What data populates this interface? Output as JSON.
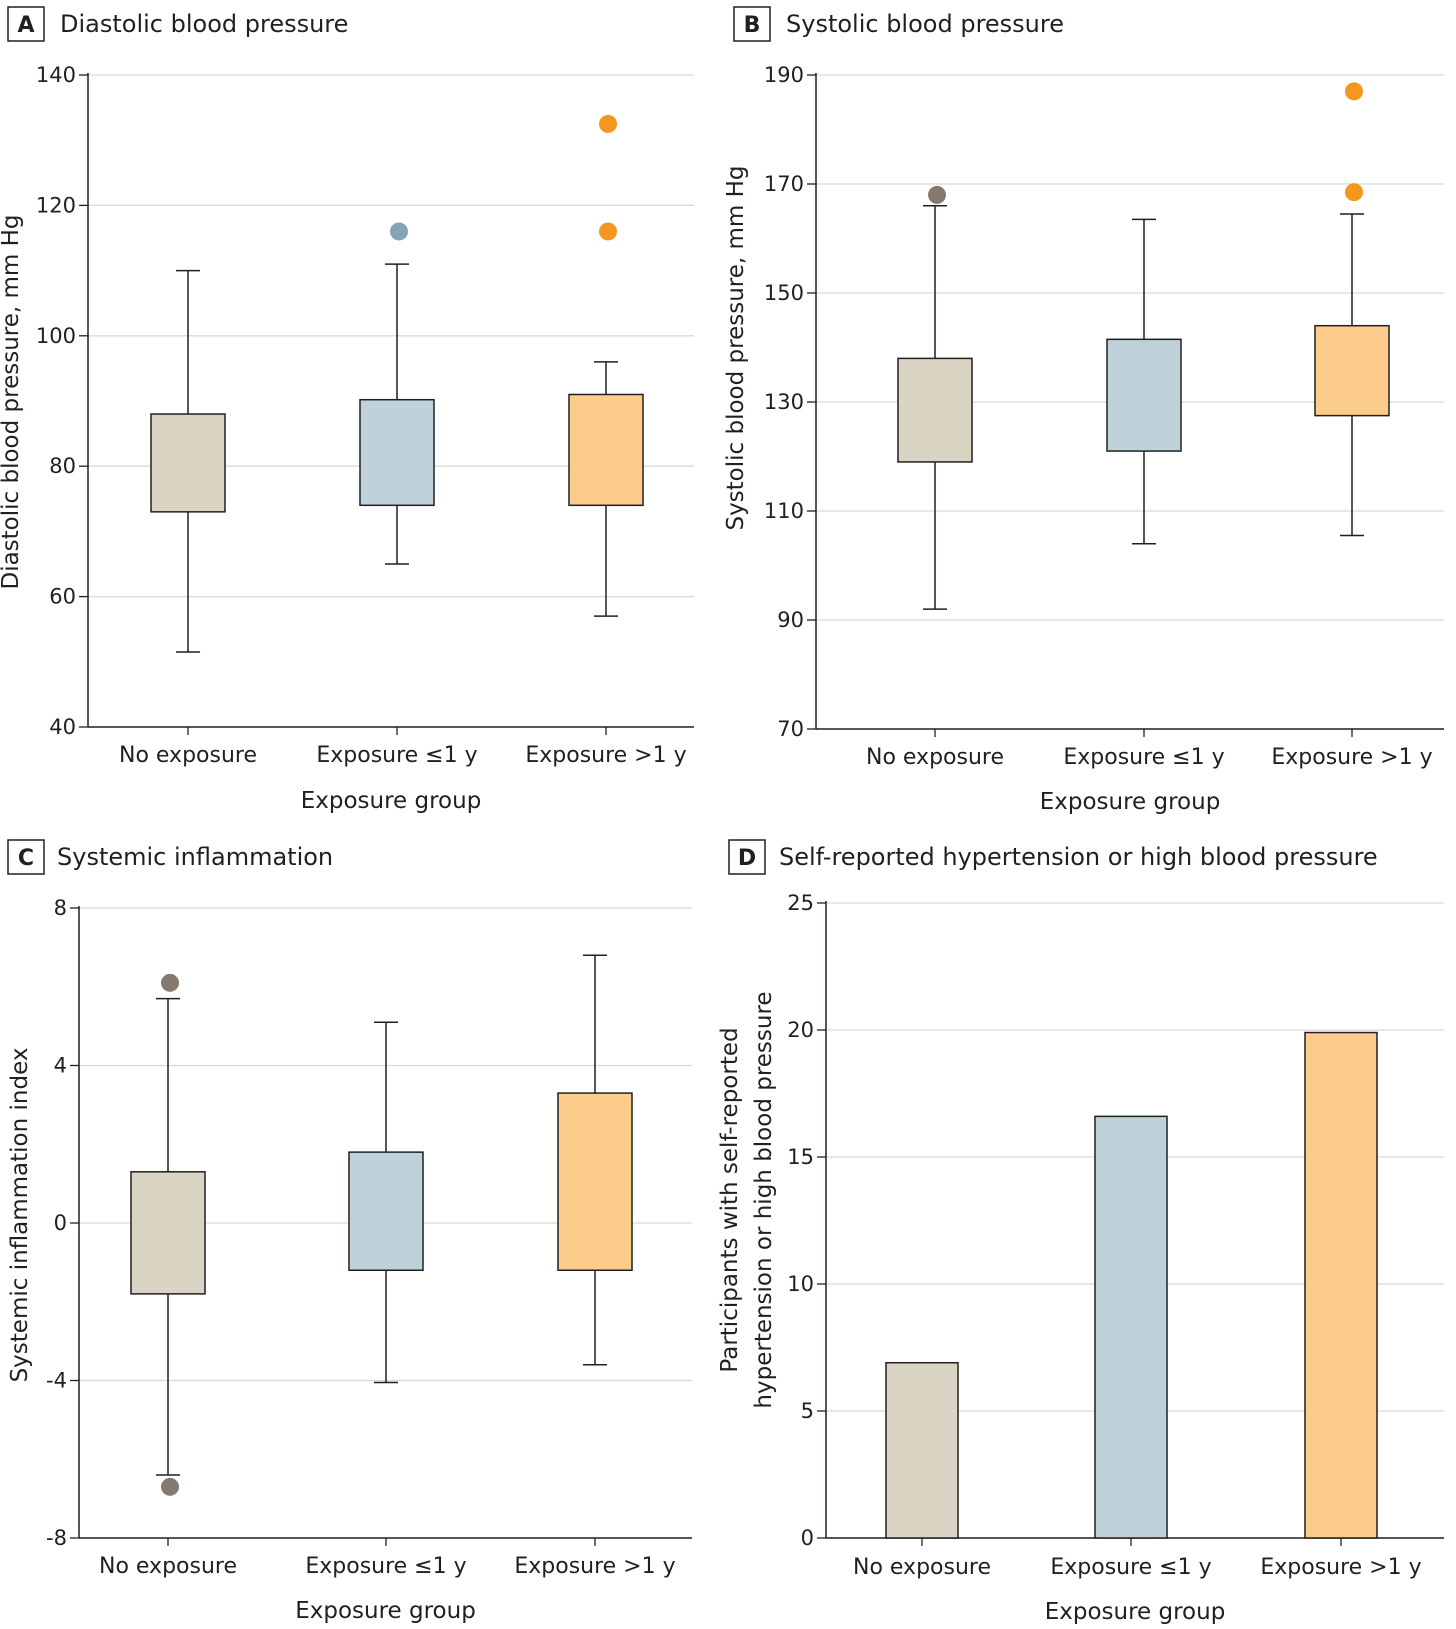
{
  "colors": {
    "no_exposure": "#d9d4c4",
    "exposure_le1": "#bfd1d9",
    "exposure_gt1": "#fbcc8a",
    "outlier_no_exposure": "#857a6e",
    "outlier_le1": "#86a4b5",
    "outlier_gt1": "#f5961f",
    "grid": "#d9d9d9",
    "axis": "#231f20"
  },
  "chart_data": [
    {
      "type": "box",
      "panel_letter": "A",
      "title": "Diastolic blood pressure",
      "xlabel": "Exposure group",
      "ylabel": "Diastolic blood pressure, mm Hg",
      "ylim": [
        40,
        140
      ],
      "yticks": [
        40,
        60,
        80,
        100,
        120,
        140
      ],
      "ytick_labels": [
        "40",
        "60",
        "80",
        "100",
        "120",
        "140"
      ],
      "categories": [
        "No exposure",
        "Exposure ≤1 y",
        "Exposure >1 y"
      ],
      "boxes": [
        {
          "whisker_low": 51.5,
          "q1": 73,
          "q3": 88,
          "whisker_high": 110,
          "outliers": []
        },
        {
          "whisker_low": 65,
          "q1": 74,
          "q3": 90.2,
          "whisker_high": 111,
          "outliers": [
            116
          ]
        },
        {
          "whisker_low": 57,
          "q1": 74,
          "q3": 91,
          "whisker_high": 96,
          "outliers": [
            116,
            132.5
          ]
        }
      ]
    },
    {
      "type": "box",
      "panel_letter": "B",
      "title": "Systolic blood pressure",
      "xlabel": "Exposure group",
      "ylabel": "Systolic blood pressure, mm Hg",
      "ylim": [
        70,
        190
      ],
      "yticks": [
        70,
        90,
        110,
        130,
        150,
        170,
        190
      ],
      "ytick_labels": [
        "70",
        "90",
        "110",
        "130",
        "150",
        "170",
        "190"
      ],
      "categories": [
        "No exposure",
        "Exposure ≤1 y",
        "Exposure >1 y"
      ],
      "boxes": [
        {
          "whisker_low": 92,
          "q1": 119,
          "q3": 138,
          "whisker_high": 166,
          "outliers": [
            168
          ]
        },
        {
          "whisker_low": 104,
          "q1": 121,
          "q3": 141.5,
          "whisker_high": 163.5,
          "outliers": []
        },
        {
          "whisker_low": 105.5,
          "q1": 127.5,
          "q3": 144,
          "whisker_high": 164.5,
          "outliers": [
            168.5,
            187
          ]
        }
      ]
    },
    {
      "type": "box",
      "panel_letter": "C",
      "title": "Systemic inflammation",
      "xlabel": "Exposure group",
      "ylabel": "Systemic inflammation index",
      "ylim": [
        -8,
        8
      ],
      "yticks": [
        -8,
        -4,
        0,
        4,
        8
      ],
      "ytick_labels": [
        "-8",
        "-4",
        "0",
        "4",
        "8"
      ],
      "categories": [
        "No exposure",
        "Exposure ≤1 y",
        "Exposure >1 y"
      ],
      "boxes": [
        {
          "whisker_low": -6.4,
          "q1": -1.8,
          "q3": 1.3,
          "whisker_high": 5.7,
          "outliers": [
            -6.7,
            6.1
          ]
        },
        {
          "whisker_low": -4.05,
          "q1": -1.2,
          "q3": 1.8,
          "whisker_high": 5.1,
          "outliers": []
        },
        {
          "whisker_low": -3.6,
          "q1": -1.2,
          "q3": 3.3,
          "whisker_high": 6.8,
          "outliers": []
        }
      ]
    },
    {
      "type": "bar",
      "panel_letter": "D",
      "title": "Self-reported hypertension or high blood pressure",
      "xlabel": "Exposure group",
      "ylabel_lines": [
        "Participants with self-reported",
        "hypertension or high blood pressure"
      ],
      "ylim": [
        0,
        25
      ],
      "yticks": [
        0,
        5,
        10,
        15,
        20,
        25
      ],
      "ytick_labels": [
        "0",
        "5",
        "10",
        "15",
        "20",
        "25"
      ],
      "categories": [
        "No exposure",
        "Exposure ≤1 y",
        "Exposure >1 y"
      ],
      "values": [
        6.9,
        16.6,
        19.9
      ]
    }
  ]
}
